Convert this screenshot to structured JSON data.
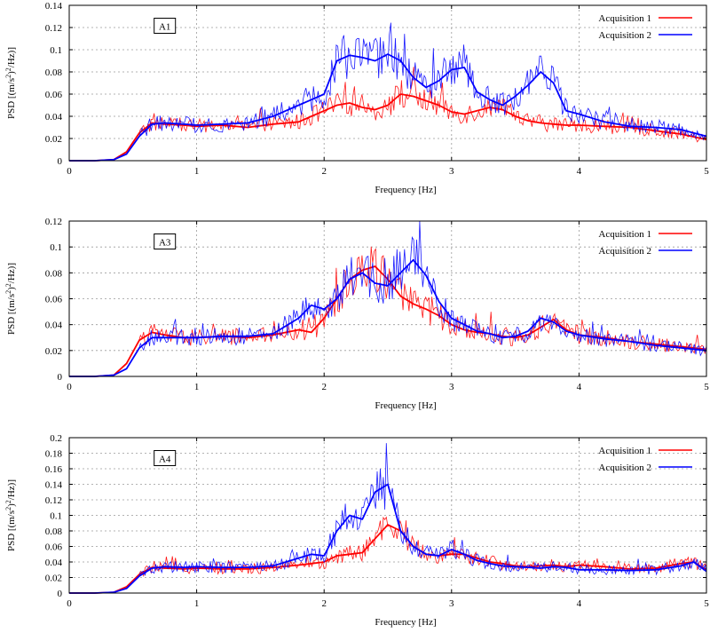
{
  "chart_data": [
    {
      "type": "line",
      "tag": "A1",
      "xlabel": "Frequency [Hz]",
      "ylabel_parts": [
        "PSD [(m/s",
        "2",
        ")",
        "2",
        "/Hz)]"
      ],
      "xlim": [
        0,
        5
      ],
      "ylim": [
        0,
        0.14
      ],
      "xticks": [
        0,
        1,
        2,
        3,
        4,
        5
      ],
      "yticks": [
        0,
        0.02,
        0.04,
        0.06,
        0.08,
        0.1,
        0.12,
        0.14
      ],
      "xtick_labels": [
        "0",
        "1",
        "2",
        "3",
        "4",
        "5"
      ],
      "ytick_labels": [
        "0",
        "0.02",
        "0.04",
        "0.06",
        "0.08",
        "0.1",
        "0.12",
        "0.14"
      ],
      "grid": true,
      "legend_position": "top-right",
      "series": [
        {
          "name": "Acquisition 1",
          "color": "#ff0000",
          "x": [
            0,
            0.2,
            0.35,
            0.45,
            0.55,
            0.65,
            0.75,
            0.9,
            1.0,
            1.2,
            1.4,
            1.6,
            1.8,
            1.9,
            2.0,
            2.1,
            2.2,
            2.3,
            2.4,
            2.5,
            2.6,
            2.7,
            2.8,
            2.9,
            3.0,
            3.1,
            3.2,
            3.3,
            3.4,
            3.5,
            3.6,
            3.7,
            3.8,
            3.9,
            4.0,
            4.2,
            4.4,
            4.6,
            4.8,
            5.0
          ],
          "y": [
            0,
            0,
            0.001,
            0.008,
            0.025,
            0.034,
            0.033,
            0.032,
            0.031,
            0.032,
            0.03,
            0.033,
            0.035,
            0.04,
            0.045,
            0.05,
            0.052,
            0.048,
            0.046,
            0.05,
            0.06,
            0.058,
            0.054,
            0.05,
            0.044,
            0.042,
            0.045,
            0.048,
            0.046,
            0.04,
            0.036,
            0.034,
            0.033,
            0.032,
            0.032,
            0.031,
            0.03,
            0.027,
            0.024,
            0.019
          ]
        },
        {
          "name": "Acquisition 2",
          "color": "#0000ff",
          "x": [
            0,
            0.2,
            0.35,
            0.45,
            0.55,
            0.65,
            0.75,
            0.9,
            1.0,
            1.2,
            1.4,
            1.6,
            1.8,
            1.9,
            2.0,
            2.1,
            2.2,
            2.3,
            2.4,
            2.5,
            2.6,
            2.7,
            2.8,
            2.9,
            3.0,
            3.1,
            3.2,
            3.3,
            3.4,
            3.5,
            3.6,
            3.7,
            3.8,
            3.9,
            4.0,
            4.2,
            4.4,
            4.6,
            4.8,
            5.0
          ],
          "y": [
            0,
            0,
            0.001,
            0.006,
            0.022,
            0.033,
            0.034,
            0.033,
            0.032,
            0.033,
            0.034,
            0.04,
            0.05,
            0.055,
            0.06,
            0.09,
            0.095,
            0.093,
            0.09,
            0.096,
            0.09,
            0.075,
            0.066,
            0.072,
            0.082,
            0.084,
            0.062,
            0.055,
            0.05,
            0.058,
            0.068,
            0.08,
            0.07,
            0.045,
            0.042,
            0.035,
            0.031,
            0.03,
            0.028,
            0.022
          ]
        }
      ]
    },
    {
      "type": "line",
      "tag": "A3",
      "xlabel": "Frequency [Hz]",
      "ylabel_parts": [
        "PSD [(m/s",
        "2",
        ")",
        "2",
        "/Hz)]"
      ],
      "xlim": [
        0,
        5
      ],
      "ylim": [
        0,
        0.12
      ],
      "xticks": [
        0,
        1,
        2,
        3,
        4,
        5
      ],
      "yticks": [
        0,
        0.02,
        0.04,
        0.06,
        0.08,
        0.1,
        0.12
      ],
      "xtick_labels": [
        "0",
        "1",
        "2",
        "3",
        "4",
        "5"
      ],
      "ytick_labels": [
        "0",
        "0.02",
        "0.04",
        "0.06",
        "0.08",
        "0.1",
        "0.12"
      ],
      "grid": true,
      "legend_position": "top-right",
      "series": [
        {
          "name": "Acquisition 1",
          "color": "#ff0000",
          "x": [
            0,
            0.2,
            0.35,
            0.45,
            0.55,
            0.65,
            0.75,
            0.9,
            1.0,
            1.2,
            1.4,
            1.6,
            1.8,
            1.9,
            2.0,
            2.1,
            2.2,
            2.3,
            2.4,
            2.5,
            2.6,
            2.7,
            2.8,
            2.9,
            3.0,
            3.1,
            3.2,
            3.3,
            3.4,
            3.5,
            3.6,
            3.7,
            3.8,
            3.9,
            4.0,
            4.2,
            4.4,
            4.6,
            4.8,
            5.0
          ],
          "y": [
            0,
            0,
            0.001,
            0.01,
            0.028,
            0.034,
            0.032,
            0.03,
            0.03,
            0.031,
            0.03,
            0.032,
            0.036,
            0.034,
            0.045,
            0.06,
            0.075,
            0.082,
            0.085,
            0.075,
            0.062,
            0.056,
            0.052,
            0.047,
            0.04,
            0.036,
            0.034,
            0.033,
            0.031,
            0.03,
            0.032,
            0.038,
            0.044,
            0.036,
            0.032,
            0.03,
            0.027,
            0.025,
            0.023,
            0.021
          ]
        },
        {
          "name": "Acquisition 2",
          "color": "#0000ff",
          "x": [
            0,
            0.2,
            0.35,
            0.45,
            0.55,
            0.65,
            0.75,
            0.9,
            1.0,
            1.2,
            1.4,
            1.6,
            1.8,
            1.9,
            2.0,
            2.1,
            2.2,
            2.3,
            2.4,
            2.5,
            2.6,
            2.7,
            2.8,
            2.9,
            3.0,
            3.1,
            3.2,
            3.3,
            3.4,
            3.5,
            3.6,
            3.7,
            3.8,
            3.9,
            4.0,
            4.2,
            4.4,
            4.6,
            4.8,
            5.0
          ],
          "y": [
            0,
            0,
            0.001,
            0.006,
            0.022,
            0.03,
            0.03,
            0.03,
            0.03,
            0.031,
            0.031,
            0.033,
            0.045,
            0.055,
            0.052,
            0.06,
            0.075,
            0.08,
            0.072,
            0.07,
            0.08,
            0.09,
            0.078,
            0.058,
            0.045,
            0.04,
            0.035,
            0.033,
            0.03,
            0.031,
            0.035,
            0.045,
            0.042,
            0.035,
            0.032,
            0.029,
            0.027,
            0.024,
            0.022,
            0.02
          ]
        }
      ]
    },
    {
      "type": "line",
      "tag": "A4",
      "xlabel": "Frequency [Hz]",
      "ylabel_parts": [
        "PSD [(m/s",
        "2",
        ")",
        "2",
        "/Hz)]"
      ],
      "xlim": [
        0,
        5
      ],
      "ylim": [
        0,
        0.2
      ],
      "xticks": [
        0,
        1,
        2,
        3,
        4,
        5
      ],
      "yticks": [
        0,
        0.02,
        0.04,
        0.06,
        0.08,
        0.1,
        0.12,
        0.14,
        0.16,
        0.18,
        0.2
      ],
      "xtick_labels": [
        "0",
        "1",
        "2",
        "3",
        "4",
        "5"
      ],
      "ytick_labels": [
        "0",
        "0.02",
        "0.04",
        "0.06",
        "0.08",
        "0.1",
        "0.12",
        "0.14",
        "0.16",
        "0.18",
        "0.2"
      ],
      "grid": true,
      "legend_position": "top-right",
      "series": [
        {
          "name": "Acquisition 1",
          "color": "#ff0000",
          "x": [
            0,
            0.2,
            0.35,
            0.45,
            0.55,
            0.65,
            0.75,
            0.9,
            1.0,
            1.2,
            1.4,
            1.6,
            1.8,
            1.9,
            2.0,
            2.1,
            2.2,
            2.3,
            2.4,
            2.5,
            2.6,
            2.7,
            2.8,
            2.9,
            3.0,
            3.1,
            3.2,
            3.3,
            3.4,
            3.5,
            3.6,
            3.7,
            3.8,
            3.9,
            4.0,
            4.2,
            4.4,
            4.6,
            4.8,
            4.9,
            5.0
          ],
          "y": [
            0,
            0,
            0.001,
            0.008,
            0.024,
            0.033,
            0.032,
            0.031,
            0.032,
            0.031,
            0.031,
            0.033,
            0.036,
            0.038,
            0.04,
            0.048,
            0.05,
            0.052,
            0.07,
            0.088,
            0.08,
            0.06,
            0.05,
            0.048,
            0.05,
            0.05,
            0.045,
            0.04,
            0.038,
            0.035,
            0.034,
            0.035,
            0.036,
            0.034,
            0.036,
            0.034,
            0.031,
            0.032,
            0.038,
            0.04,
            0.03
          ]
        },
        {
          "name": "Acquisition 2",
          "color": "#0000ff",
          "x": [
            0,
            0.2,
            0.35,
            0.45,
            0.55,
            0.65,
            0.75,
            0.9,
            1.0,
            1.2,
            1.4,
            1.6,
            1.8,
            1.9,
            2.0,
            2.1,
            2.2,
            2.3,
            2.4,
            2.5,
            2.6,
            2.7,
            2.8,
            2.9,
            3.0,
            3.1,
            3.2,
            3.3,
            3.4,
            3.5,
            3.6,
            3.7,
            3.8,
            3.9,
            4.0,
            4.2,
            4.4,
            4.6,
            4.8,
            4.9,
            5.0
          ],
          "y": [
            0,
            0,
            0.001,
            0.006,
            0.022,
            0.032,
            0.034,
            0.033,
            0.034,
            0.033,
            0.033,
            0.035,
            0.045,
            0.05,
            0.048,
            0.08,
            0.1,
            0.095,
            0.13,
            0.14,
            0.08,
            0.06,
            0.05,
            0.048,
            0.056,
            0.05,
            0.042,
            0.038,
            0.035,
            0.034,
            0.033,
            0.032,
            0.034,
            0.033,
            0.03,
            0.03,
            0.029,
            0.03,
            0.035,
            0.04,
            0.028
          ]
        }
      ]
    }
  ]
}
